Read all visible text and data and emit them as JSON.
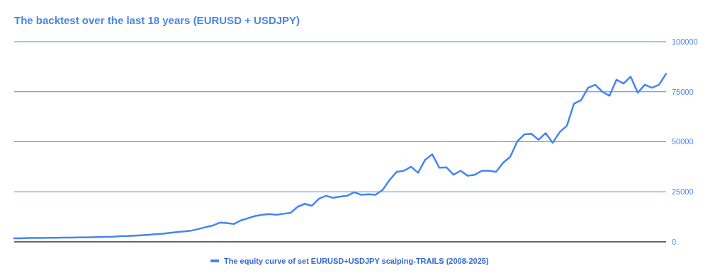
{
  "chart_data": {
    "type": "line",
    "title": "The backtest over the last 18 years (EURUSD + USDJPY)",
    "categories": [
      null,
      null,
      null,
      null,
      null,
      null,
      null,
      null,
      null,
      null,
      null,
      null,
      null,
      null,
      null,
      null,
      null,
      null,
      null,
      null,
      null,
      null,
      null,
      null,
      null,
      null,
      null,
      null,
      null,
      null,
      null,
      null,
      null,
      null,
      null,
      null,
      null,
      null,
      null,
      null,
      null,
      null,
      null,
      null,
      null,
      null,
      null,
      null,
      null,
      null,
      null,
      null,
      null,
      null,
      null,
      null,
      null,
      null,
      null,
      null,
      null,
      null,
      null,
      null,
      null,
      null,
      null,
      null,
      null,
      null,
      null,
      null,
      null,
      null,
      null,
      null,
      null,
      null,
      null,
      null,
      null,
      null,
      null,
      null,
      null,
      null,
      null,
      null,
      null,
      null,
      null,
      null,
      null
    ],
    "series": [
      {
        "name": "The equity curve of set EURUSD+USDJPY scalping-TRAILS (2008-2025)",
        "color": "#4285f4",
        "values": [
          1800,
          1800,
          1900,
          1900,
          1900,
          2000,
          2000,
          2100,
          2100,
          2200,
          2200,
          2300,
          2400,
          2500,
          2600,
          2800,
          2900,
          3100,
          3300,
          3500,
          3800,
          4100,
          4500,
          4900,
          5200,
          5600,
          6400,
          7300,
          8100,
          9600,
          9400,
          8900,
          10700,
          11800,
          12900,
          13500,
          13900,
          13500,
          14000,
          14500,
          17500,
          19000,
          18000,
          21500,
          23000,
          22000,
          22600,
          23000,
          24800,
          23500,
          23800,
          23500,
          26000,
          31000,
          35000,
          35500,
          37500,
          34500,
          41000,
          43700,
          37000,
          37200,
          33500,
          35500,
          33000,
          33500,
          35500,
          35500,
          35000,
          39500,
          42500,
          50200,
          53700,
          54000,
          51000,
          54300,
          49500,
          54900,
          58000,
          69000,
          70800,
          77000,
          78500,
          75000,
          73000,
          81000,
          79100,
          82500,
          74500,
          78500,
          77000,
          78500,
          84000
        ]
      }
    ],
    "ylim": [
      0,
      100000
    ],
    "yticks": [
      0,
      25000,
      50000,
      75000,
      100000
    ],
    "grid": "y",
    "legend": "bottom"
  }
}
